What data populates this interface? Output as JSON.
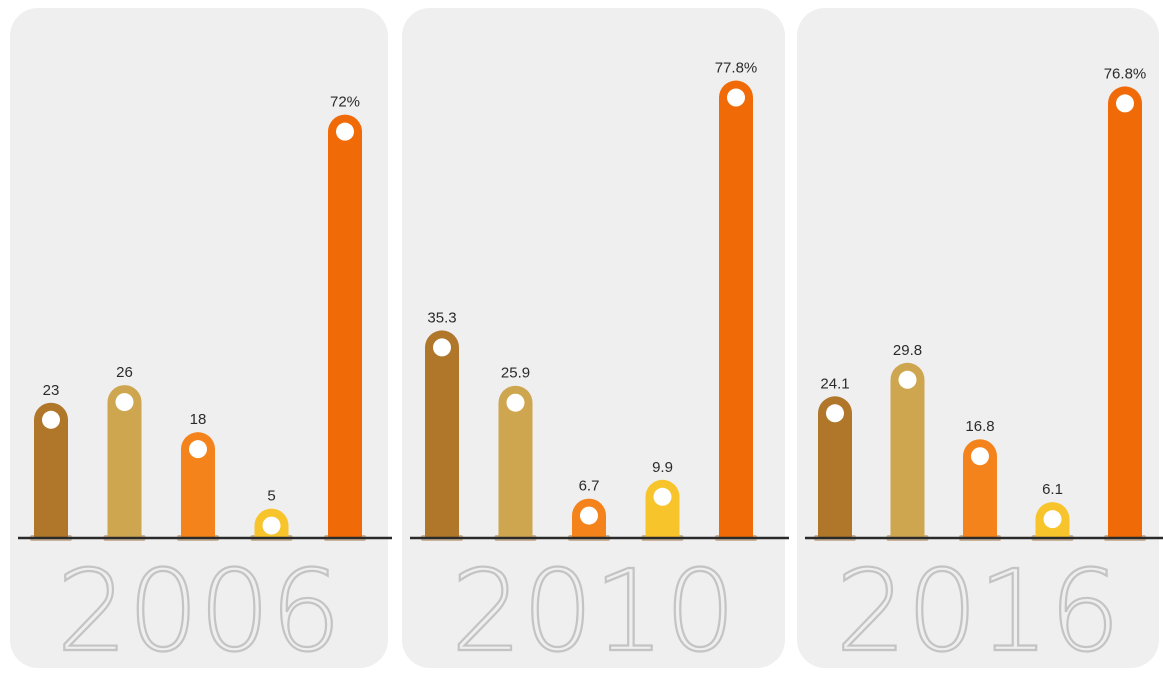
{
  "colors": {
    "series": [
      "#b0762a",
      "#cfa650",
      "#f4831b",
      "#f8c42c",
      "#f06a08"
    ],
    "panel_background": "#efefef",
    "baseline": "#2a2a2a",
    "year_label": "#c4c4c4"
  },
  "chart_data": [
    {
      "type": "bar",
      "year_label": "2006",
      "values": [
        23,
        26,
        18,
        5,
        72
      ],
      "labels": [
        "23",
        "26",
        "18",
        "5",
        "72%"
      ],
      "ylim": [
        0,
        80
      ]
    },
    {
      "type": "bar",
      "year_label": "2010",
      "values": [
        35.3,
        25.9,
        6.7,
        9.9,
        77.8
      ],
      "labels": [
        "35.3",
        "25.9",
        "6.7",
        "9.9",
        "77.8%"
      ],
      "ylim": [
        0,
        80
      ]
    },
    {
      "type": "bar",
      "year_label": "2016",
      "values": [
        24.1,
        29.8,
        16.8,
        6.1,
        76.8
      ],
      "labels": [
        "24.1",
        "29.8",
        "16.8",
        "6.1",
        "76.8%"
      ],
      "ylim": [
        0,
        80
      ]
    }
  ]
}
